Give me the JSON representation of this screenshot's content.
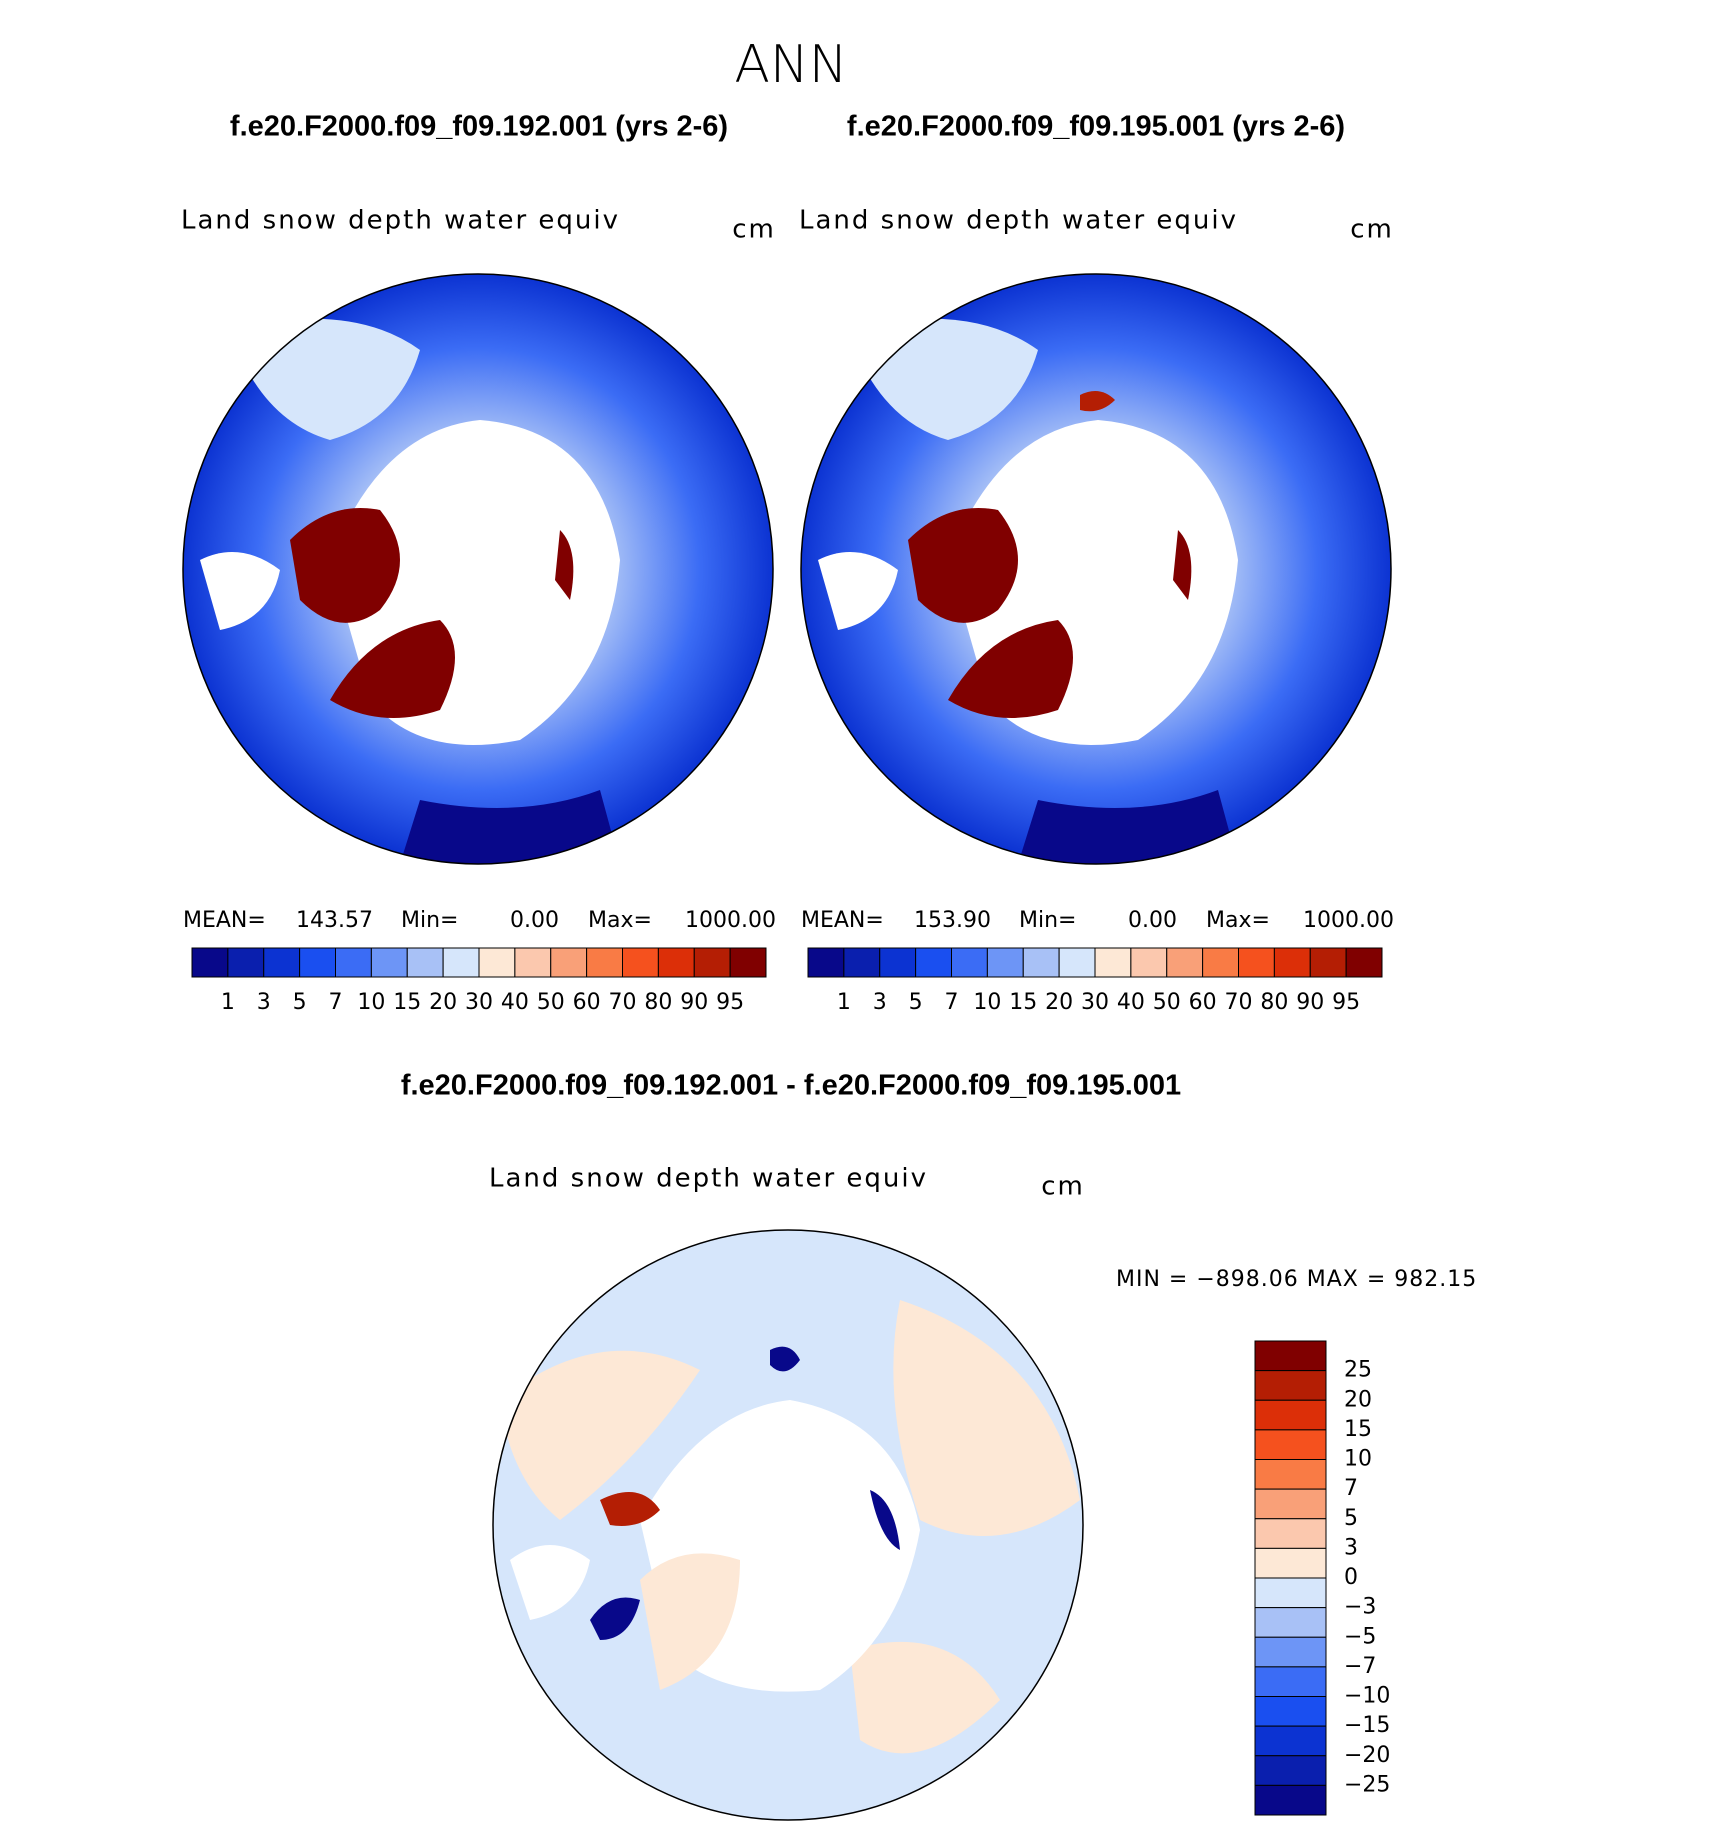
{
  "title": "ANN",
  "panels": [
    {
      "case": "f.e20.F2000.f09_f09.192.001 (yrs 2-6)",
      "variable": "Land snow depth water equiv",
      "units": "cm",
      "stats": {
        "mean_label": "MEAN=",
        "mean": "143.57",
        "min_label": "Min=",
        "min": "0.00",
        "max_label": "Max=",
        "max": "1000.00"
      }
    },
    {
      "case": "f.e20.F2000.f09_f09.195.001 (yrs 2-6)",
      "variable": "Land snow depth water equiv",
      "units": "cm",
      "stats": {
        "mean_label": "MEAN=",
        "mean": "153.90",
        "min_label": "Min=",
        "min": "0.00",
        "max_label": "Max=",
        "max": "1000.00"
      }
    }
  ],
  "colorbar": {
    "colors": [
      "#08088a",
      "#0a1fae",
      "#0c33d2",
      "#1a4ff0",
      "#3b6cf5",
      "#6d95f6",
      "#a8c1f6",
      "#d6e6fb",
      "#fde8d6",
      "#fbc8ae",
      "#f9a078",
      "#f97b45",
      "#f5511e",
      "#dc2f08",
      "#b41e04",
      "#800000"
    ],
    "labels": [
      "1",
      "3",
      "5",
      "7",
      "10",
      "15",
      "20",
      "30",
      "40",
      "50",
      "60",
      "70",
      "80",
      "90",
      "95"
    ]
  },
  "difference": {
    "case": "f.e20.F2000.f09_f09.192.001 - f.e20.F2000.f09_f09.195.001",
    "variable": "Land snow depth water equiv",
    "units": "cm",
    "range_text": "MIN = −898.06 MAX = 982.15",
    "colorbar": {
      "colors": [
        "#800000",
        "#b41e04",
        "#dc2f08",
        "#f5511e",
        "#f97b45",
        "#f9a078",
        "#fbc8ae",
        "#fde8d6",
        "#d6e6fb",
        "#a8c1f6",
        "#6d95f6",
        "#3b6cf5",
        "#1a4ff0",
        "#0c33d2",
        "#0a1fae",
        "#08088a"
      ],
      "labels": [
        "25",
        "20",
        "15",
        "10",
        "7",
        "5",
        "3",
        "0",
        "−3",
        "−5",
        "−7",
        "−10",
        "−15",
        "−20",
        "−25"
      ]
    }
  }
}
